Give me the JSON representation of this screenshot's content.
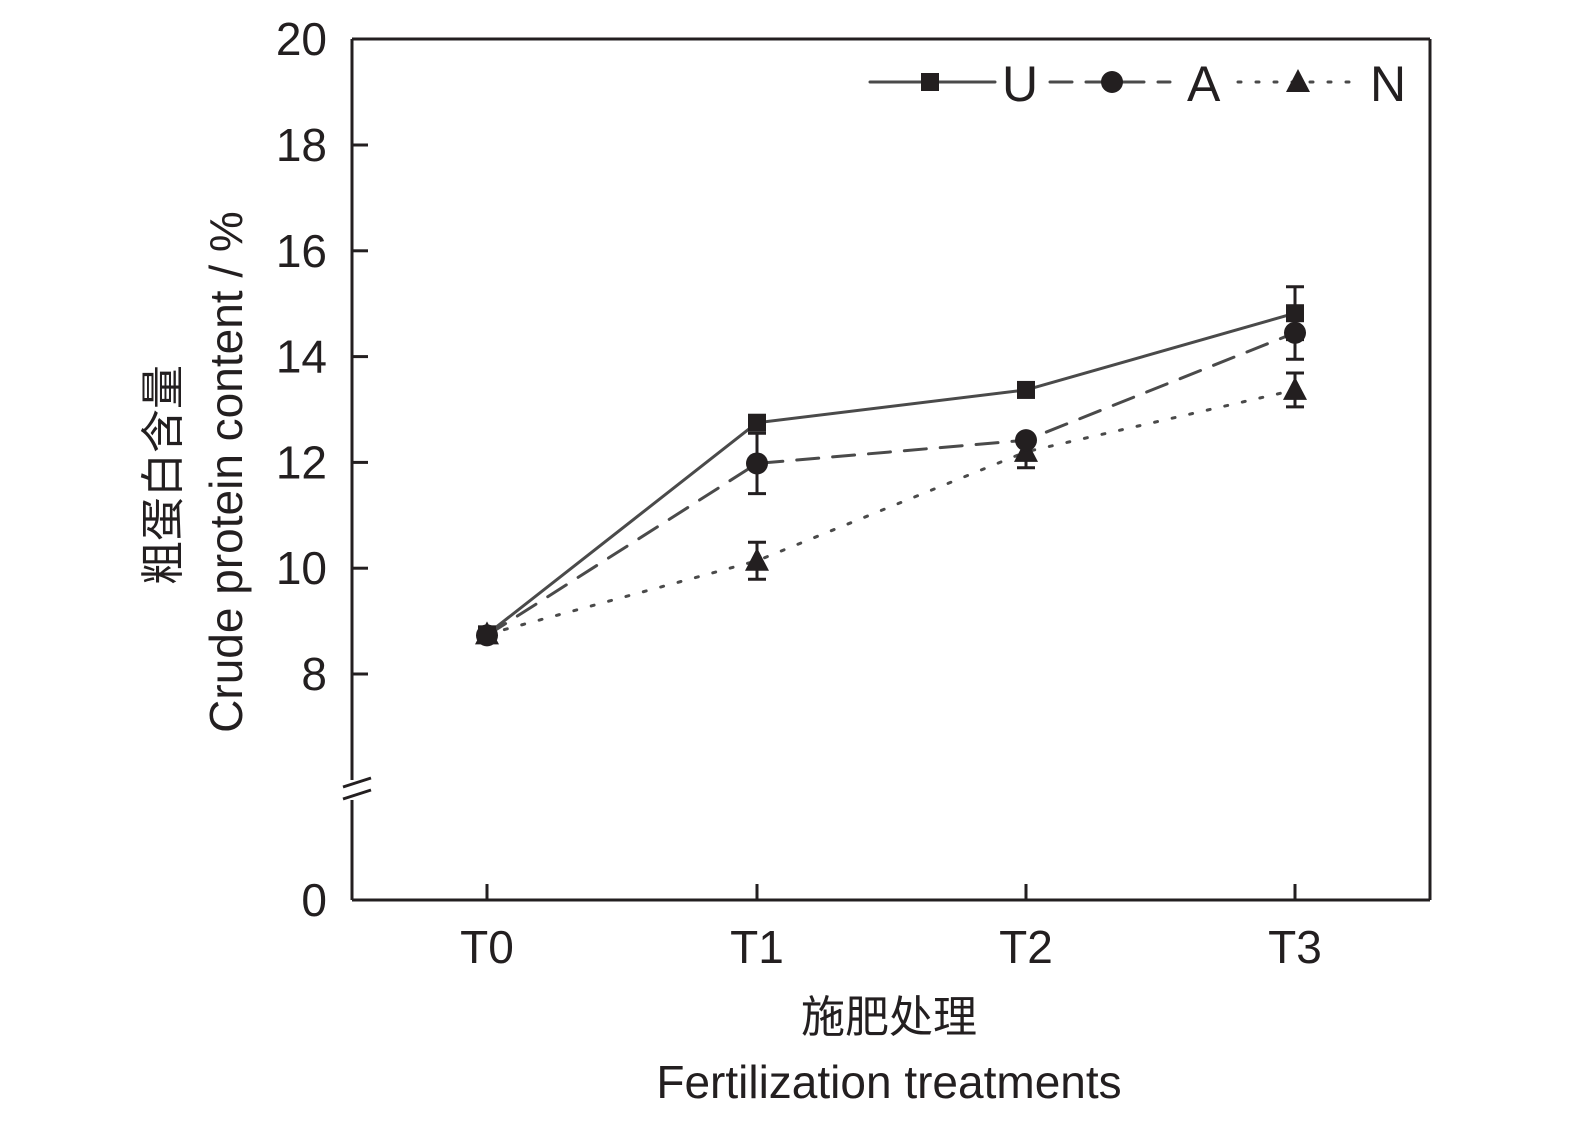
{
  "chart_data": {
    "type": "line",
    "title": "",
    "xlabel_cn": "施肥处理",
    "xlabel": "Fertilization treatments",
    "ylabel_cn": "粗蛋白含量",
    "ylabel": "Crude protein content / %",
    "categories": [
      "T0",
      "T1",
      "T2",
      "T3"
    ],
    "y_ticks": [
      0,
      8,
      10,
      12,
      14,
      16,
      18,
      20
    ],
    "y_tick_labels": [
      "0",
      "8",
      "10",
      "12",
      "14",
      "16",
      "18",
      "20"
    ],
    "ylim": [
      0,
      20
    ],
    "y_axis_break": [
      0,
      6
    ],
    "grid": false,
    "legend_position": "top-right",
    "series": [
      {
        "name": "U",
        "marker": "square",
        "line_style": "solid",
        "values": [
          8.75,
          12.75,
          13.37,
          14.82
        ],
        "errors": [
          0.05,
          0.1,
          0.05,
          0.5
        ]
      },
      {
        "name": "A",
        "marker": "circle",
        "line_style": "dashed",
        "values": [
          8.73,
          11.98,
          12.42,
          14.45
        ],
        "errors": [
          0.05,
          0.57,
          0.1,
          0.5
        ]
      },
      {
        "name": "N",
        "marker": "triangle",
        "line_style": "dotted",
        "values": [
          8.75,
          10.14,
          12.2,
          13.37
        ],
        "errors": [
          0.05,
          0.35,
          0.3,
          0.32
        ]
      }
    ],
    "colors": {
      "line": "#4a4a4a",
      "marker": "#231f20",
      "axis": "#231f20"
    }
  }
}
